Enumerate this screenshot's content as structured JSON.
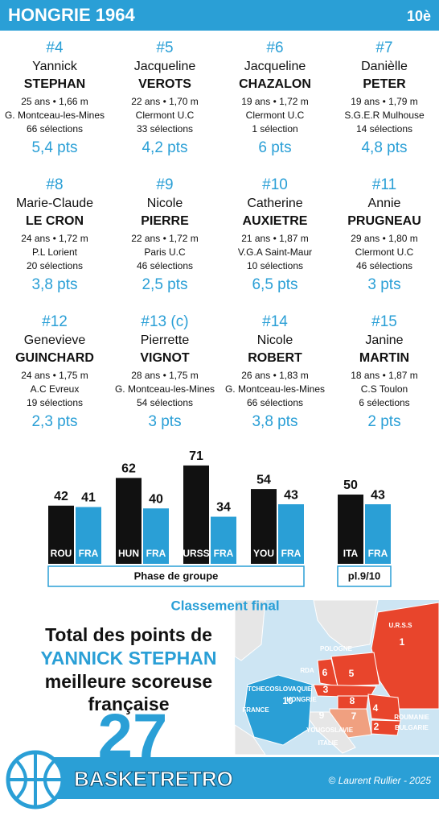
{
  "header": {
    "title": "HONGRIE 1964",
    "rank": "10è"
  },
  "players": [
    {
      "number": "#4",
      "first_name": "Yannick",
      "last_name": "STEPHAN",
      "info": "25 ans • 1,66 m",
      "club": "G. Montceau-les-Mines",
      "selections": "66 sélections",
      "points": "5,4 pts"
    },
    {
      "number": "#5",
      "first_name": "Jacqueline",
      "last_name": "VEROTS",
      "info": "22 ans • 1,70 m",
      "club": "Clermont U.C",
      "selections": "33 sélections",
      "points": "4,2 pts"
    },
    {
      "number": "#6",
      "first_name": "Jacqueline",
      "last_name": "CHAZALON",
      "info": "19 ans • 1,72 m",
      "club": "Clermont U.C",
      "selections": "1 sélection",
      "points": "6 pts"
    },
    {
      "number": "#7",
      "first_name": "Danièlle",
      "last_name": "PETER",
      "info": "19 ans • 1,79 m",
      "club": "S.G.E.R Mulhouse",
      "selections": "14 sélections",
      "points": "4,8 pts"
    },
    {
      "number": "#8",
      "first_name": "Marie-Claude",
      "last_name": "LE CRON",
      "info": "24 ans • 1,72 m",
      "club": "P.L Lorient",
      "selections": "20 sélections",
      "points": "3,8 pts"
    },
    {
      "number": "#9",
      "first_name": "Nicole",
      "last_name": "PIERRE",
      "info": "22 ans • 1,72 m",
      "club": "Paris U.C",
      "selections": "46 sélections",
      "points": "2,5 pts"
    },
    {
      "number": "#10",
      "first_name": "Catherine",
      "last_name": "AUXIETRE",
      "info": "21 ans • 1,87 m",
      "club": "V.G.A Saint-Maur",
      "selections": "10 sélections",
      "points": "6,5 pts"
    },
    {
      "number": "#11",
      "first_name": "Annie",
      "last_name": "PRUGNEAU",
      "info": "29 ans • 1,80 m",
      "club": "Clermont U.C",
      "selections": "46 sélections",
      "points": "3 pts"
    },
    {
      "number": "#12",
      "first_name": "Genevieve",
      "last_name": "GUINCHARD",
      "info": "24 ans • 1,75 m",
      "club": "A.C Evreux",
      "selections": "19 sélections",
      "points": "2,3 pts"
    },
    {
      "number": "#13 (c)",
      "first_name": "Pierrette",
      "last_name": "VIGNOT",
      "info": "28 ans • 1,75 m",
      "club": "G. Montceau-les-Mines",
      "selections": "54 sélections",
      "points": "3 pts"
    },
    {
      "number": "#14",
      "first_name": "Nicole",
      "last_name": "ROBERT",
      "info": "26 ans • 1,83 m",
      "club": "G. Montceau-les-Mines",
      "selections": "66 sélections",
      "points": "3,8 pts"
    },
    {
      "number": "#15",
      "first_name": "Janine",
      "last_name": "MARTIN",
      "info": "18 ans • 1,87 m",
      "club": "C.S Toulon",
      "selections": "6 sélections",
      "points": "2 pts"
    }
  ],
  "chart_data": {
    "type": "bar",
    "colors": {
      "opponent": "#111111",
      "team": "#2a9fd6"
    },
    "phases": [
      {
        "label": "Phase de groupe",
        "games": [
          {
            "opponent": "ROU",
            "opponent_score": 42,
            "team": "FRA",
            "team_score": 41
          },
          {
            "opponent": "HUN",
            "opponent_score": 62,
            "team": "FRA",
            "team_score": 40
          },
          {
            "opponent": "URSS",
            "opponent_score": 71,
            "team": "FRA",
            "team_score": 34
          },
          {
            "opponent": "YOU",
            "opponent_score": 54,
            "team": "FRA",
            "team_score": 43
          }
        ]
      },
      {
        "label": "pl.9/10",
        "games": [
          {
            "opponent": "ITA",
            "opponent_score": 50,
            "team": "FRA",
            "team_score": 43
          }
        ]
      }
    ]
  },
  "ranking": {
    "title": "Classement final",
    "countries": [
      {
        "name": "U.R.S.S",
        "rank": 1
      },
      {
        "name": "BULGARIE",
        "rank": 2
      },
      {
        "name": "TCHECOSLOVAQUIE",
        "rank": 3
      },
      {
        "name": "ROUMANIE",
        "rank": 4
      },
      {
        "name": "POLOGNE",
        "rank": 5
      },
      {
        "name": "RDA",
        "rank": 6
      },
      {
        "name": "YOUGOSLAVIE",
        "rank": 7
      },
      {
        "name": "HONGRIE",
        "rank": 8
      },
      {
        "name": "ITALIE",
        "rank": 9
      },
      {
        "name": "FRANCE",
        "rank": 10
      }
    ]
  },
  "top_scorer": {
    "line1": "Total des points de",
    "name": "YANNICK STEPHAN",
    "line2": "meilleure scoreuse",
    "line3": "française",
    "total": 27
  },
  "footer": {
    "brand": "BASKETRETRO",
    "credit": "© Laurent Rullier - 2025"
  }
}
